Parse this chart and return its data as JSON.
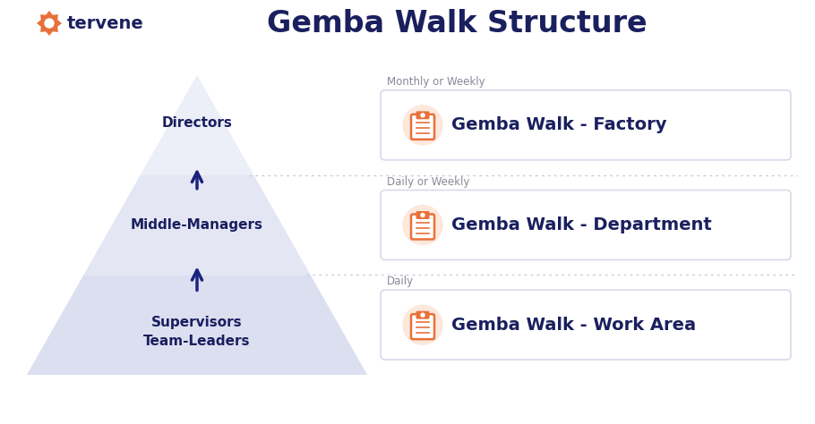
{
  "title": "Gemba Walk Structure",
  "bg_color": "#ffffff",
  "pyramid_color_top": "#eceef8",
  "pyramid_color_mid": "#e4e6f4",
  "pyramid_color_bot": "#dcdff0",
  "arrow_color": "#1a237e",
  "text_color_dark": "#1a1f5e",
  "dot_line_color": "#c8cce0",
  "orange_color": "#e8703a",
  "orange_light": "#fce8dc",
  "logo_text": "tervene",
  "levels": [
    {
      "label": "Directors",
      "frequency": "Monthly or Weekly",
      "gemba": "Gemba Walk - Factory"
    },
    {
      "label": "Middle-Managers",
      "frequency": "Daily or Weekly",
      "gemba": "Gemba Walk - Department"
    },
    {
      "label": "Supervisors\nTeam-Leaders",
      "frequency": "Daily",
      "gemba": "Gemba Walk - Work Area"
    }
  ]
}
